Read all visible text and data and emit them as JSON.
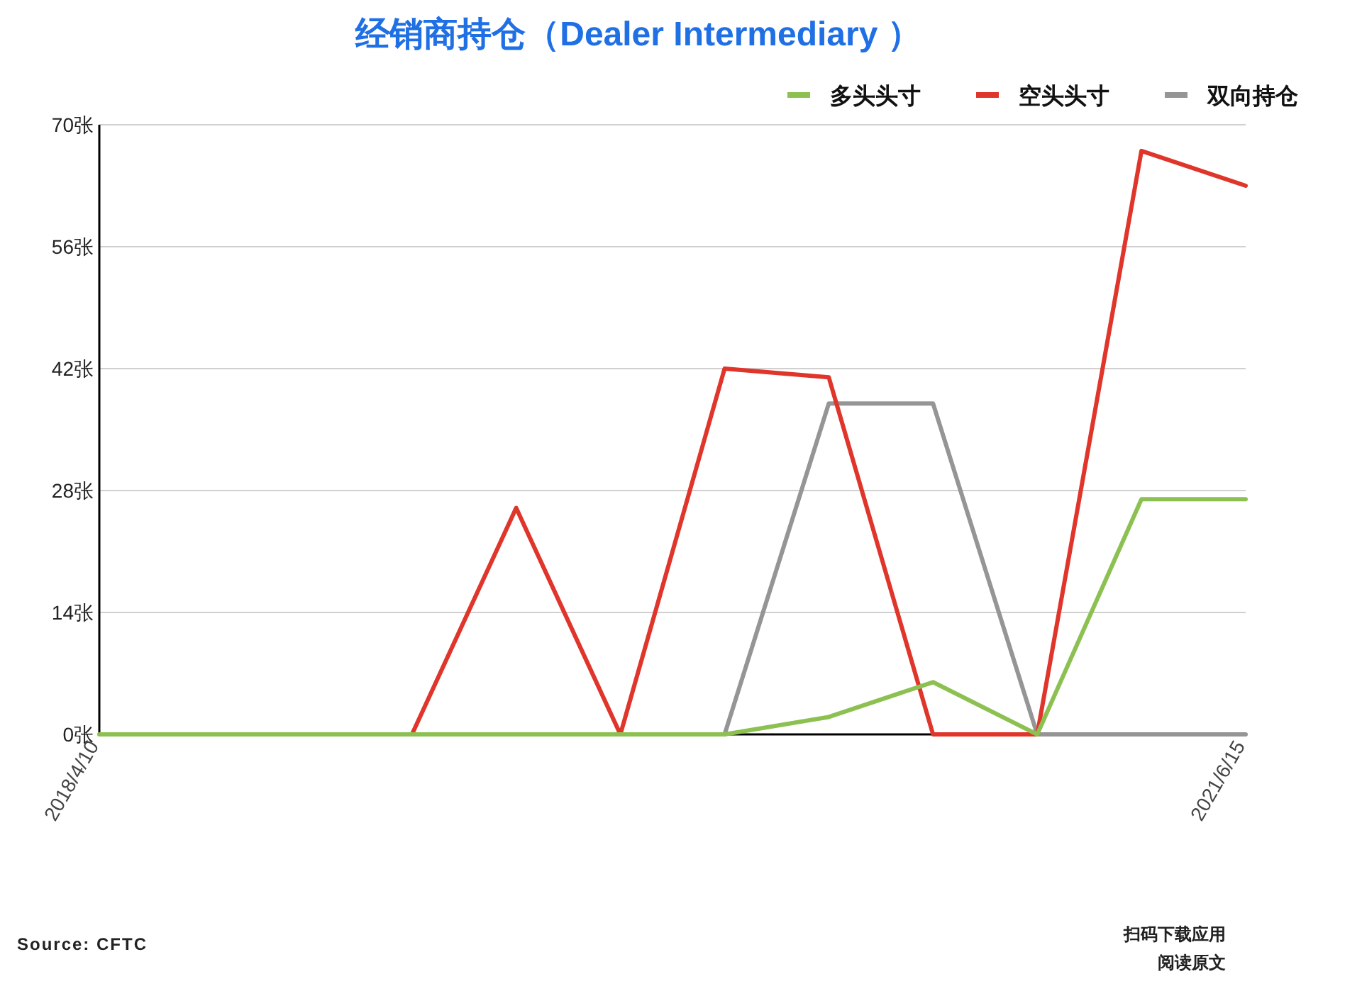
{
  "chart_data": {
    "type": "line",
    "title": "经销商持仓（Dealer Intermediary ）",
    "categories": [
      "2018/4/10",
      null,
      null,
      null,
      null,
      null,
      null,
      null,
      null,
      null,
      null,
      "2021/6/15"
    ],
    "series": [
      {
        "name": "多头头寸",
        "color": "#8cc152",
        "values": [
          0,
          0,
          0,
          0,
          0,
          0,
          0,
          2,
          6,
          0,
          27,
          27
        ]
      },
      {
        "name": "空头头寸",
        "color": "#e0352b",
        "values": [
          null,
          null,
          null,
          0,
          26,
          0,
          42,
          41,
          0,
          0,
          67,
          63
        ]
      },
      {
        "name": "双向持仓",
        "color": "#959595",
        "values": [
          null,
          null,
          null,
          null,
          null,
          null,
          0,
          38,
          38,
          0,
          0,
          0
        ]
      }
    ],
    "ylim": [
      0,
      70
    ],
    "yticks": [
      {
        "value": 0,
        "label": "0张"
      },
      {
        "value": 14,
        "label": "14张"
      },
      {
        "value": 28,
        "label": "28张"
      },
      {
        "value": 42,
        "label": "42张"
      },
      {
        "value": 56,
        "label": "56张"
      },
      {
        "value": 70,
        "label": "70张"
      }
    ],
    "grid": "y",
    "legend": "top right",
    "marker": "none",
    "line_style": "solid",
    "annotations": [
      "Source: CFTC",
      "扫码下载应用",
      "阅读原文"
    ]
  }
}
